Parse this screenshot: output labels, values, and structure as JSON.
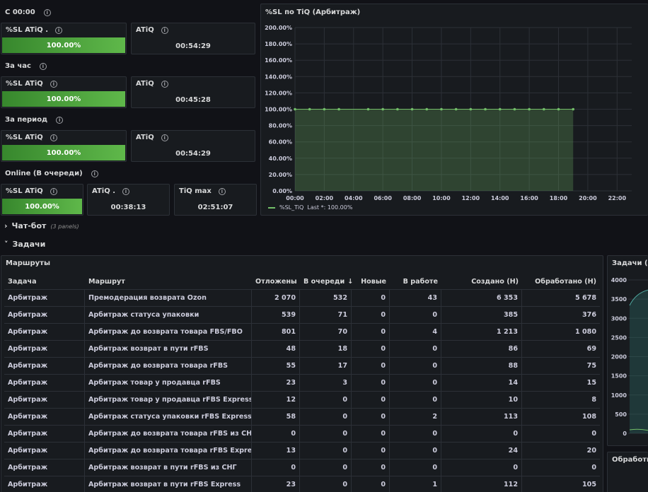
{
  "rows": {
    "since_midnight": "С 00:00",
    "per_hour": "За час",
    "per_period": "За период",
    "online": "Online (В очереди)"
  },
  "stats": {
    "r1_sl_title": "%SL ATiQ .",
    "r1_sl_value": "100.00%",
    "r1_sl_level": 1.0,
    "r1_atiq_title": "ATiQ",
    "r1_atiq_value": "00:54:29",
    "r2_sl_title": "%SL ATiQ",
    "r2_sl_value": "100.00%",
    "r2_sl_level": 1.0,
    "r2_atiq_title": "ATiQ",
    "r2_atiq_value": "00:45:28",
    "r3_sl_title": "%SL ATiQ",
    "r3_sl_value": "100.00%",
    "r3_sl_level": 1.0,
    "r3_atiq_title": "ATiQ",
    "r3_atiq_value": "00:54:29",
    "r4_sl_title": "%SL ATiQ",
    "r4_sl_value": "100.00%",
    "r4_sl_level": 1.0,
    "r4_atiq_title": "ATiQ .",
    "r4_atiq_value": "00:38:13",
    "r4_tiq_title": "TiQ max",
    "r4_tiq_value": "02:51:07"
  },
  "line_panel": {
    "title": "%SL по TiQ (Арбитраж)",
    "legend_series": "%SL_TiQ",
    "legend_last": "Last *: 100.00%"
  },
  "chart_data": {
    "type": "area",
    "title": "%SL по TiQ (Арбитраж)",
    "ylim": [
      0,
      200
    ],
    "yticks": [
      "200.00%",
      "180.00%",
      "160.00%",
      "140.00%",
      "120.00%",
      "100.00%",
      "80.00%",
      "60.00%",
      "40.00%",
      "20.00%",
      "0.00%"
    ],
    "xticks": [
      "00:00",
      "02:00",
      "04:00",
      "06:00",
      "08:00",
      "10:00",
      "12:00",
      "14:00",
      "16:00",
      "18:00",
      "20:00",
      "22:00"
    ],
    "xlim_hours": [
      0,
      23
    ],
    "series": [
      {
        "name": "%SL_TiQ",
        "color": "#73bf69",
        "x_hours": [
          0,
          1,
          2,
          3,
          5,
          6,
          7,
          8,
          9,
          10,
          11,
          12,
          13,
          14,
          15,
          16,
          17,
          18,
          19
        ],
        "values": [
          100,
          100,
          100,
          100,
          100,
          100,
          100,
          100,
          100,
          100,
          100,
          100,
          100,
          100,
          100,
          100,
          100,
          100,
          100
        ]
      }
    ],
    "grid": true,
    "legend": "bottom-left"
  },
  "sections": {
    "chatbot_label": "Чат-бот",
    "chatbot_sub": "(3 panels)",
    "tasks_label": "Задачи"
  },
  "routes_panel": {
    "title": "Маршруты",
    "columns": [
      "Задача",
      "Маршрут",
      "Отложены",
      "В очереди",
      "Новые",
      "В работе",
      "Создано (Н)",
      "Обработано (Н)"
    ],
    "rows": [
      [
        "Арбитраж",
        "Премодерация возврата Ozon",
        "2 070",
        "532",
        "0",
        "43",
        "6 353",
        "5 678"
      ],
      [
        "Арбитраж",
        "Арбитраж статуса упаковки",
        "539",
        "71",
        "0",
        "0",
        "385",
        "376"
      ],
      [
        "Арбитраж",
        "Арбитраж до возврата товара FBS/FBO",
        "801",
        "70",
        "0",
        "4",
        "1 213",
        "1 080"
      ],
      [
        "Арбитраж",
        "Арбитраж возврат в пути rFBS",
        "48",
        "18",
        "0",
        "0",
        "86",
        "69"
      ],
      [
        "Арбитраж",
        "Арбитраж до возврата товара rFBS",
        "55",
        "17",
        "0",
        "0",
        "88",
        "75"
      ],
      [
        "Арбитраж",
        "Арбитраж товар у продавца rFBS",
        "23",
        "3",
        "0",
        "0",
        "14",
        "15"
      ],
      [
        "Арбитраж",
        "Арбитраж товар у продавца rFBS Express",
        "12",
        "0",
        "0",
        "0",
        "10",
        "8"
      ],
      [
        "Арбитраж",
        "Арбитраж статуса упаковки rFBS Express",
        "58",
        "0",
        "0",
        "2",
        "113",
        "108"
      ],
      [
        "Арбитраж",
        "Арбитраж до возврата товара rFBS из СНГ",
        "0",
        "0",
        "0",
        "0",
        "0",
        "0"
      ],
      [
        "Арбитраж",
        "Арбитраж до возврата товара rFBS Express",
        "13",
        "0",
        "0",
        "0",
        "24",
        "20"
      ],
      [
        "Арбитраж",
        "Арбитраж возврат в пути rFBS из СНГ",
        "0",
        "0",
        "0",
        "0",
        "0",
        "0"
      ],
      [
        "Арбитраж",
        "Арбитраж возврат в пути rFBS Express",
        "23",
        "0",
        "0",
        "1",
        "112",
        "105"
      ]
    ]
  },
  "right_panel": {
    "title": "Задачи (Ар",
    "yticks": [
      "4000",
      "3500",
      "3000",
      "2500",
      "2000",
      "1500",
      "1000",
      "500",
      "0"
    ]
  },
  "right_panel2": {
    "title": "Обработка"
  }
}
